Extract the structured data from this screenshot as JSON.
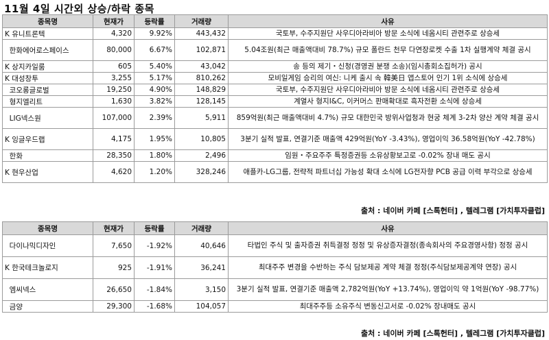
{
  "title": "11월 4일  시간외 상승/하락 종목",
  "headers": {
    "name": "종목명",
    "price": "현재가",
    "change": "등락률",
    "volume": "거래량",
    "reason": "사유"
  },
  "rising": [
    {
      "name": "K 유니트론텍",
      "price": "4,320",
      "change": "9.92%",
      "volume": "443,432",
      "reason": "국토부, 수주지원단 사우디아라비아 방문 소식에 네옴시티 관련주로 상승세"
    },
    {
      "name": "  한화에어로스페이스",
      "price": "80,000",
      "change": "6.67%",
      "volume": "102,871",
      "reason": "5.04조원(최근 매출액대비 78.7%) 규모 폴란드 천무 다연장로켓 수출 1차 실행계약 체결 공시"
    },
    {
      "name": "K 상지카일룸",
      "price": "605",
      "change": "5.40%",
      "volume": "43,042",
      "reason": "송 등의 제기・신청(경영권 분쟁 소송)(임시총회소집허가) 공시"
    },
    {
      "name": "K 대성창투",
      "price": "3,255",
      "change": "5.17%",
      "volume": "810,262",
      "reason": "모비일게임 승리의 여신: 니케 출시 속 韓美日 앱스토어 인기 1위 소식에 상승세"
    },
    {
      "name": "  코오롱글로벌",
      "price": "19,250",
      "change": "4.90%",
      "volume": "148,829",
      "reason": "국토부, 수주지원단 사우디아라비아 방문 소식에 네옴시티 관련주로 상승세"
    },
    {
      "name": "  형지엘리트",
      "price": "1,630",
      "change": "3.82%",
      "volume": "128,145",
      "reason": "계열사 형지I&C, 이커머스 판매확대로 흑자전환 소식에 상승세"
    },
    {
      "name": "  LIG넥스원",
      "price": "107,000",
      "change": "2.39%",
      "volume": "5,911",
      "reason": "859억원(최근 매출액대비 4.7%) 규모 대한민국 방위사업청과 현궁 체계 3-2차 양산 계약 체결 공시"
    },
    {
      "name": "K 잉글우드랩",
      "price": "4,175",
      "change": "1.95%",
      "volume": "10,805",
      "reason": "3분기 실적 발표, 연결기준 매출액 429억원(YoY -3.43%), 영업이익 36.58억원(YoY -42.78%)"
    },
    {
      "name": "  한화",
      "price": "28,350",
      "change": "1.80%",
      "volume": "2,496",
      "reason": "임원・주요주주 특정증권등 소유상황보고로 -0.02% 장내 매도 공시"
    },
    {
      "name": "K 현우산업",
      "price": "4,620",
      "change": "1.20%",
      "volume": "328,246",
      "reason": "애플카-LG그룹, 전략적 파트너십 가능성 확대 소식에 LG전자향 PCB 공급 이력 부각으로 상승세"
    }
  ],
  "falling": [
    {
      "name": "  다이나믹디자인",
      "price": "7,650",
      "change": "-1.92%",
      "volume": "40,646",
      "reason": "타법인 주식 및 출자증권 취득결정 정정 및 유상증자결정(종속회사의 주요경영사항) 정정 공시"
    },
    {
      "name": "K 한국테크놀로지",
      "price": "925",
      "change": "-1.91%",
      "volume": "36,241",
      "reason": "최대주주 변경을 수반하는 주식 담보제공 계약 체결 정정(주식담보제공계약 연장) 공시"
    },
    {
      "name": "  엠씨넥스",
      "price": "26,650",
      "change": "-1.84%",
      "volume": "3,150",
      "reason": "3분기 실적 발표, 연결기준 매출액 2,782억원(YoY +13.74%), 영업이익 약 1억원(YoY -98.77%)"
    },
    {
      "name": "  금양",
      "price": "29,300",
      "change": "-1.68%",
      "volume": "104,057",
      "reason": "최대주주등 소유주식 변동신고서로 -0.02% 장내매도 공시"
    }
  ],
  "source": "출처 : 네이버 카페 [스톡헌터] , 텔레그램 [가치투자클럽]"
}
